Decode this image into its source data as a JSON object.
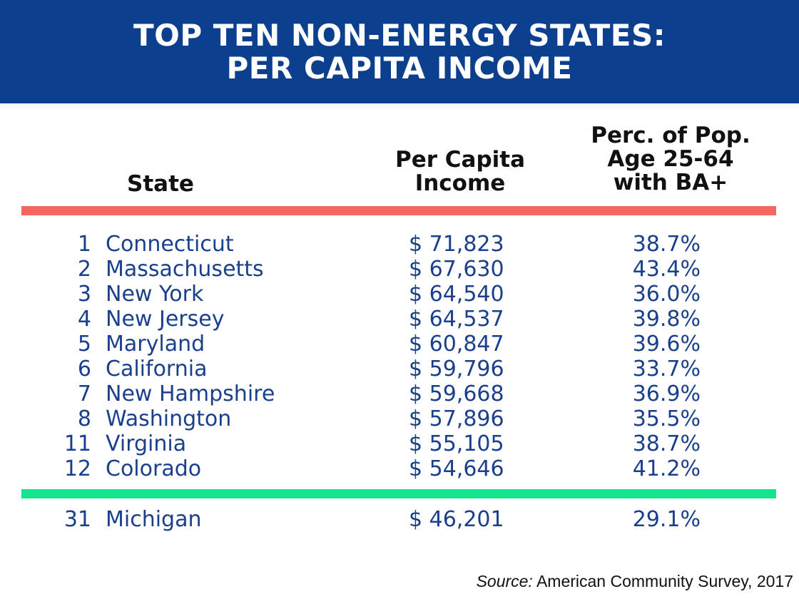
{
  "banner": {
    "title_line1": "TOP TEN NON-ENERGY STATES:",
    "title_line2": "PER CAPITA INCOME"
  },
  "columns": {
    "state": "State",
    "income": [
      "Per Capita",
      "Income"
    ],
    "ba": [
      "Perc. of Pop.",
      "Age 25-64",
      "with BA+"
    ]
  },
  "colors": {
    "banner": "#0d3f8f",
    "header_rule": "#f4675f",
    "footer_rule": "#13e58f",
    "row_text": "#1a3f8d"
  },
  "chart_data": {
    "type": "table",
    "title": "TOP TEN NON-ENERGY STATES: PER CAPITA INCOME",
    "headers": [
      "State",
      "Per Capita Income",
      "Perc. of Pop. Age 25-64 with BA+"
    ],
    "rows": [
      {
        "rank": "1",
        "state": "Connecticut",
        "income": "$ 71,823",
        "ba": "38.7%"
      },
      {
        "rank": "2",
        "state": "Massachusetts",
        "income": "$ 67,630",
        "ba": "43.4%"
      },
      {
        "rank": "3",
        "state": "New York",
        "income": "$ 64,540",
        "ba": "36.0%"
      },
      {
        "rank": "4",
        "state": "New Jersey",
        "income": "$ 64,537",
        "ba": "39.8%"
      },
      {
        "rank": "5",
        "state": "Maryland",
        "income": "$ 60,847",
        "ba": "39.6%"
      },
      {
        "rank": "6",
        "state": "California",
        "income": "$ 59,796",
        "ba": "33.7%"
      },
      {
        "rank": "7",
        "state": "New Hampshire",
        "income": "$ 59,668",
        "ba": "36.9%"
      },
      {
        "rank": "8",
        "state": "Washington",
        "income": "$ 57,896",
        "ba": "35.5%"
      },
      {
        "rank": "11",
        "state": "Virginia",
        "income": "$ 55,105",
        "ba": "38.7%"
      },
      {
        "rank": "12",
        "state": "Colorado",
        "income": "$ 54,646",
        "ba": "41.2%"
      }
    ],
    "footer_row": {
      "rank": "31",
      "state": "Michigan",
      "income": "$ 46,201",
      "ba": "29.1%"
    }
  },
  "source": {
    "label": "Source:",
    "text": " American Community Survey, 2017"
  }
}
